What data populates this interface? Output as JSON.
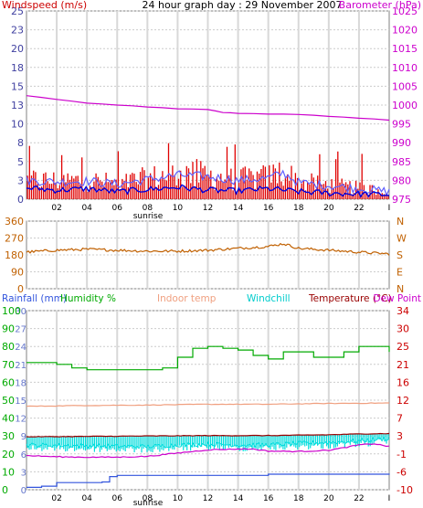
{
  "title": "24 hour graph day : 29 November 2007",
  "colors": {
    "wind": "#e00000",
    "gust_avg": "#0000dd",
    "baro": "#cc00cc",
    "dir": "#c06000",
    "rain": "#3355dd",
    "hum": "#00aa00",
    "indoor": "#f0a080",
    "chill": "#00dddd",
    "temp": "#990000",
    "dew": "#cc00cc",
    "grid": "#cccccc",
    "tick": "#4040a0"
  },
  "chart_data": [
    {
      "id": "wind_baro",
      "type": "bar",
      "left_label": "Windspeed (m/s)",
      "right_label": "Barometer (hPa)",
      "left_ticks": [
        "25",
        "23",
        "20",
        "18",
        "15",
        "13",
        "10",
        "8",
        "5",
        "3",
        "0"
      ],
      "right_ticks": [
        "1025",
        "1020",
        "1015",
        "1010",
        "1005",
        "1000",
        "995",
        "990",
        "985",
        "980",
        "975"
      ],
      "ylim_left": [
        0,
        25
      ],
      "ylim_right": [
        975,
        1025
      ],
      "x_ticks": [
        "02",
        "04",
        "06",
        "08",
        "10",
        "12",
        "14",
        "16",
        "18",
        "20",
        "22"
      ],
      "x_end_label": "I",
      "sunrise_label": "sunrise",
      "barometer": [
        [
          0,
          1002.5
        ],
        [
          2,
          1001.5
        ],
        [
          4,
          1000.5
        ],
        [
          6,
          1000
        ],
        [
          8,
          999.5
        ],
        [
          10,
          999
        ],
        [
          12,
          998.8
        ],
        [
          13,
          998
        ],
        [
          14,
          997.8
        ],
        [
          16,
          997.6
        ],
        [
          18,
          997.5
        ],
        [
          20,
          997
        ],
        [
          22,
          996.5
        ],
        [
          24,
          996
        ]
      ],
      "wind_avg_profile": [
        [
          0,
          1.5
        ],
        [
          2,
          1.2
        ],
        [
          4,
          1.4
        ],
        [
          6,
          1.0
        ],
        [
          8,
          1.3
        ],
        [
          10,
          1.6
        ],
        [
          12,
          1.2
        ],
        [
          14,
          1.1
        ],
        [
          16,
          1.4
        ],
        [
          18,
          1.0
        ],
        [
          20,
          0.8
        ],
        [
          22,
          0.7
        ],
        [
          24,
          0.6
        ]
      ],
      "gust_profile": [
        [
          0,
          2.5
        ],
        [
          2,
          2.3
        ],
        [
          4,
          2.4
        ],
        [
          6,
          2.0
        ],
        [
          8,
          2.6
        ],
        [
          10,
          3.2
        ],
        [
          12,
          3.0
        ],
        [
          14,
          2.5
        ],
        [
          16,
          2.8
        ],
        [
          17,
          3.5
        ],
        [
          18,
          2.2
        ],
        [
          20,
          1.8
        ],
        [
          22,
          1.4
        ],
        [
          24,
          1.0
        ]
      ]
    },
    {
      "id": "direction",
      "type": "line",
      "left_ticks": [
        "360",
        "270",
        "180",
        "90",
        "0"
      ],
      "right_ticks": [
        "N",
        "W",
        "S",
        "E",
        "N"
      ],
      "ylim": [
        0,
        360
      ],
      "direction": [
        [
          0,
          195
        ],
        [
          2,
          205
        ],
        [
          4,
          210
        ],
        [
          6,
          205
        ],
        [
          8,
          200
        ],
        [
          10,
          200
        ],
        [
          12,
          205
        ],
        [
          14,
          215
        ],
        [
          16,
          225
        ],
        [
          17,
          240
        ],
        [
          18,
          215
        ],
        [
          20,
          205
        ],
        [
          22,
          195
        ],
        [
          24,
          185
        ]
      ]
    },
    {
      "id": "temp_hum",
      "type": "line",
      "labels": [
        "Rainfall (mm)",
        "Humidity %",
        "Indoor temp",
        "Windchill",
        "Temperature (°C)",
        "Dew Point"
      ],
      "rain_ticks": [
        "30",
        "27",
        "24",
        "21",
        "18",
        "15",
        "12",
        "9",
        "6",
        "3",
        "0"
      ],
      "hum_ticks": [
        "100",
        "90",
        "80",
        "70",
        "60",
        "50",
        "40",
        "30",
        "20",
        "10",
        "0"
      ],
      "right_ticks": [
        "34",
        "30",
        "25",
        "21",
        "16",
        "12",
        "7",
        "3",
        "-1",
        "-6",
        "-10"
      ],
      "ylim_hum": [
        0,
        100
      ],
      "ylim_temp": [
        -10,
        34
      ],
      "x_ticks": [
        "02",
        "04",
        "06",
        "08",
        "10",
        "12",
        "14",
        "16",
        "18",
        "20",
        "22"
      ],
      "x_end_label": "I",
      "sunrise_label": "sunrise",
      "humidity": [
        [
          0,
          71
        ],
        [
          2,
          70
        ],
        [
          3,
          68
        ],
        [
          4,
          67
        ],
        [
          6,
          67
        ],
        [
          8,
          67
        ],
        [
          9,
          68
        ],
        [
          10,
          74
        ],
        [
          11,
          79
        ],
        [
          12,
          80
        ],
        [
          13,
          79
        ],
        [
          14,
          78
        ],
        [
          15,
          75
        ],
        [
          16,
          73
        ],
        [
          17,
          77
        ],
        [
          18,
          77
        ],
        [
          19,
          74
        ],
        [
          20,
          74
        ],
        [
          21,
          77
        ],
        [
          22,
          80
        ],
        [
          23,
          80
        ],
        [
          24,
          77
        ]
      ],
      "indoor_temp": [
        [
          0,
          10.5
        ],
        [
          4,
          10.7
        ],
        [
          8,
          10.8
        ],
        [
          12,
          11
        ],
        [
          16,
          11
        ],
        [
          20,
          11.2
        ],
        [
          24,
          11.3
        ]
      ],
      "temperature": [
        [
          0,
          3
        ],
        [
          4,
          3.1
        ],
        [
          8,
          3.2
        ],
        [
          12,
          3.3
        ],
        [
          16,
          3.3
        ],
        [
          20,
          3.5
        ],
        [
          22,
          3.7
        ],
        [
          24,
          3.8
        ]
      ],
      "windchill": [
        [
          0,
          1.0
        ],
        [
          4,
          0.8
        ],
        [
          8,
          0.6
        ],
        [
          10,
          1.0
        ],
        [
          12,
          1.2
        ],
        [
          14,
          1.0
        ],
        [
          16,
          1.0
        ],
        [
          18,
          1.4
        ],
        [
          20,
          1.6
        ],
        [
          22,
          2.0
        ],
        [
          24,
          2.6
        ]
      ],
      "dew_point": [
        [
          0,
          -1.6
        ],
        [
          2,
          -1.9
        ],
        [
          4,
          -2.0
        ],
        [
          6,
          -2.0
        ],
        [
          8,
          -1.8
        ],
        [
          10,
          -1.0
        ],
        [
          12,
          -0.2
        ],
        [
          14,
          0
        ],
        [
          15,
          0
        ],
        [
          16,
          -0.5
        ],
        [
          18,
          -0.6
        ],
        [
          20,
          -0.3
        ],
        [
          21,
          0.3
        ],
        [
          22,
          1.0
        ],
        [
          23,
          1.3
        ],
        [
          24,
          0.6
        ]
      ],
      "rainfall": [
        [
          0,
          0.4
        ],
        [
          1,
          0.6
        ],
        [
          2,
          1.2
        ],
        [
          5,
          1.3
        ],
        [
          5.5,
          2.2
        ],
        [
          6,
          2.4
        ],
        [
          16,
          2.6
        ],
        [
          24,
          2.7
        ]
      ]
    }
  ]
}
